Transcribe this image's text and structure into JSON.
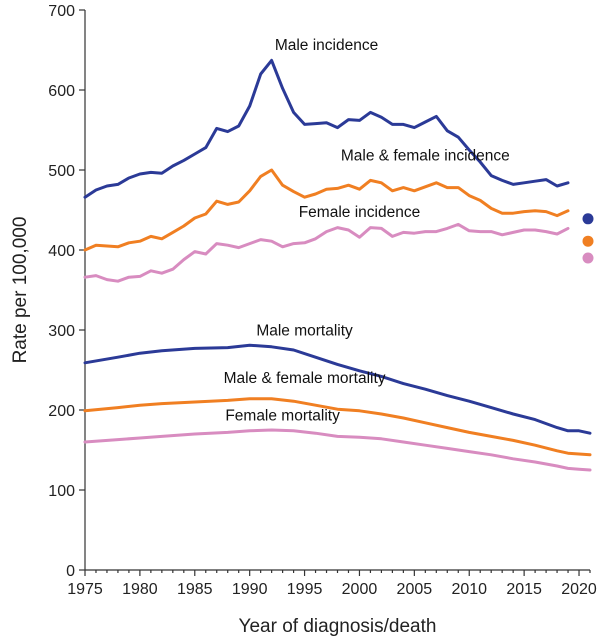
{
  "chart_data": {
    "type": "line",
    "xlabel": "Year of diagnosis/death",
    "ylabel": "Rate per 100,000",
    "xlim": [
      1975,
      2021
    ],
    "ylim": [
      0,
      700
    ],
    "xticks": [
      1975,
      1980,
      1985,
      1990,
      1995,
      2000,
      2005,
      2010,
      2015,
      2020
    ],
    "yticks": [
      0,
      100,
      200,
      300,
      400,
      500,
      600,
      700
    ],
    "grid": false,
    "colors": {
      "male": "#2b3a97",
      "both": "#f07f22",
      "female": "#d88cc0"
    },
    "series": [
      {
        "name": "Male incidence",
        "color_key": "male",
        "x": [
          1975,
          1976,
          1977,
          1978,
          1979,
          1980,
          1981,
          1982,
          1983,
          1984,
          1985,
          1986,
          1987,
          1988,
          1989,
          1990,
          1991,
          1992,
          1993,
          1994,
          1995,
          1996,
          1997,
          1998,
          1999,
          2000,
          2001,
          2002,
          2003,
          2004,
          2005,
          2006,
          2007,
          2008,
          2009,
          2010,
          2011,
          2012,
          2013,
          2014,
          2015,
          2016,
          2017,
          2018,
          2019
        ],
        "values": [
          466,
          475,
          480,
          482,
          490,
          495,
          497,
          496,
          505,
          512,
          520,
          528,
          552,
          548,
          555,
          580,
          620,
          637,
          602,
          572,
          557,
          558,
          559,
          553,
          563,
          562,
          572,
          566,
          557,
          557,
          553,
          560,
          567,
          549,
          541,
          525,
          510,
          493,
          487,
          482,
          484,
          486,
          488,
          480,
          484
        ]
      },
      {
        "name": "Male & female incidence",
        "color_key": "both",
        "x": [
          1975,
          1976,
          1977,
          1978,
          1979,
          1980,
          1981,
          1982,
          1983,
          1984,
          1985,
          1986,
          1987,
          1988,
          1989,
          1990,
          1991,
          1992,
          1993,
          1994,
          1995,
          1996,
          1997,
          1998,
          1999,
          2000,
          2001,
          2002,
          2003,
          2004,
          2005,
          2006,
          2007,
          2008,
          2009,
          2010,
          2011,
          2012,
          2013,
          2014,
          2015,
          2016,
          2017,
          2018,
          2019
        ],
        "values": [
          400,
          406,
          405,
          404,
          409,
          411,
          417,
          414,
          422,
          430,
          440,
          445,
          461,
          457,
          460,
          474,
          492,
          500,
          481,
          473,
          466,
          470,
          476,
          477,
          481,
          476,
          487,
          484,
          474,
          478,
          474,
          479,
          484,
          478,
          478,
          468,
          462,
          452,
          446,
          446,
          448,
          449,
          448,
          443,
          449
        ]
      },
      {
        "name": "Female incidence",
        "color_key": "female",
        "x": [
          1975,
          1976,
          1977,
          1978,
          1979,
          1980,
          1981,
          1982,
          1983,
          1984,
          1985,
          1986,
          1987,
          1988,
          1989,
          1990,
          1991,
          1992,
          1993,
          1994,
          1995,
          1996,
          1997,
          1998,
          1999,
          2000,
          2001,
          2002,
          2003,
          2004,
          2005,
          2006,
          2007,
          2008,
          2009,
          2010,
          2011,
          2012,
          2013,
          2014,
          2015,
          2016,
          2017,
          2018,
          2019
        ],
        "values": [
          366,
          368,
          363,
          361,
          366,
          367,
          374,
          371,
          376,
          388,
          398,
          395,
          408,
          406,
          403,
          408,
          413,
          411,
          404,
          408,
          409,
          414,
          423,
          428,
          425,
          416,
          428,
          427,
          417,
          422,
          421,
          423,
          423,
          427,
          432,
          424,
          423,
          423,
          419,
          422,
          425,
          425,
          423,
          420,
          427
        ]
      },
      {
        "name": "Male mortality",
        "color_key": "male",
        "x": [
          1975,
          1978,
          1980,
          1982,
          1985,
          1988,
          1990,
          1992,
          1994,
          1996,
          1998,
          2000,
          2002,
          2004,
          2006,
          2008,
          2010,
          2012,
          2014,
          2016,
          2018,
          2019,
          2020,
          2021
        ],
        "values": [
          259,
          266,
          271,
          274,
          277,
          278,
          281,
          279,
          275,
          266,
          257,
          249,
          242,
          233,
          226,
          218,
          211,
          203,
          195,
          188,
          178,
          174,
          174,
          171
        ]
      },
      {
        "name": "Male & female mortality",
        "color_key": "both",
        "x": [
          1975,
          1978,
          1980,
          1982,
          1985,
          1988,
          1990,
          1992,
          1994,
          1996,
          1998,
          2000,
          2002,
          2004,
          2006,
          2008,
          2010,
          2012,
          2014,
          2016,
          2018,
          2019,
          2020,
          2021
        ],
        "values": [
          199,
          203,
          206,
          208,
          210,
          212,
          214,
          214,
          211,
          206,
          201,
          199,
          195,
          190,
          184,
          178,
          172,
          167,
          162,
          156,
          149,
          146,
          145,
          144
        ]
      },
      {
        "name": "Female mortality",
        "color_key": "female",
        "x": [
          1975,
          1978,
          1980,
          1982,
          1985,
          1988,
          1990,
          1992,
          1994,
          1996,
          1998,
          2000,
          2002,
          2004,
          2006,
          2008,
          2010,
          2012,
          2014,
          2016,
          2018,
          2019,
          2020,
          2021
        ],
        "values": [
          160,
          163,
          165,
          167,
          170,
          172,
          174,
          175,
          174,
          171,
          167,
          166,
          164,
          160,
          156,
          152,
          148,
          144,
          139,
          135,
          130,
          127,
          126,
          125
        ]
      }
    ],
    "points": [
      {
        "color_key": "male",
        "x": 2021,
        "y": 439
      },
      {
        "color_key": "both",
        "x": 2021,
        "y": 411
      },
      {
        "color_key": "female",
        "x": 2021,
        "y": 390
      }
    ],
    "annotations": [
      {
        "text": "Male incidence",
        "x": 1997,
        "y": 650
      },
      {
        "text": "Male & female incidence",
        "x": 2006,
        "y": 512
      },
      {
        "text": "Female incidence",
        "x": 2000,
        "y": 441
      },
      {
        "text": "Male mortality",
        "x": 1995,
        "y": 293
      },
      {
        "text": "Male & female mortality",
        "x": 1995,
        "y": 234
      },
      {
        "text": "Female mortality",
        "x": 1993,
        "y": 187
      }
    ]
  }
}
